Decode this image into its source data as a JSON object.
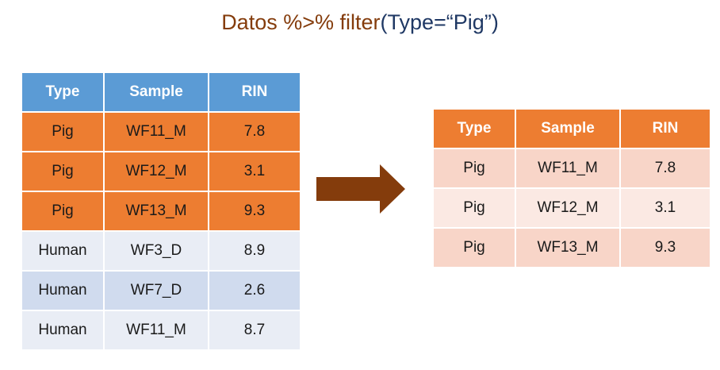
{
  "title": {
    "prefix": "Datos %>% filter",
    "args": "(Type=“Pig”)"
  },
  "input_table": {
    "headers": [
      "Type",
      "Sample",
      "RIN"
    ],
    "rows": [
      {
        "type": "Pig",
        "sample": "WF11_M",
        "rin": "7.8",
        "highlighted": true
      },
      {
        "type": "Pig",
        "sample": "WF12_M",
        "rin": "3.1",
        "highlighted": true
      },
      {
        "type": "Pig",
        "sample": "WF13_M",
        "rin": "9.3",
        "highlighted": true
      },
      {
        "type": "Human",
        "sample": "WF3_D",
        "rin": "8.9",
        "highlighted": false
      },
      {
        "type": "Human",
        "sample": "WF7_D",
        "rin": "2.6",
        "highlighted": false
      },
      {
        "type": "Human",
        "sample": "WF11_M",
        "rin": "8.7",
        "highlighted": false
      }
    ]
  },
  "output_table": {
    "headers": [
      "Type",
      "Sample",
      "RIN"
    ],
    "rows": [
      {
        "type": "Pig",
        "sample": "WF11_M",
        "rin": "7.8"
      },
      {
        "type": "Pig",
        "sample": "WF12_M",
        "rin": "3.1"
      },
      {
        "type": "Pig",
        "sample": "WF13_M",
        "rin": "9.3"
      }
    ]
  },
  "colors": {
    "title_prefix": "#843c0c",
    "title_args": "#1f3864",
    "input_header": "#5b9bd5",
    "highlight_row": "#ed7d31",
    "output_header": "#ed7d31",
    "arrow": "#843c0c"
  },
  "icons": {
    "arrow": "right-arrow-icon"
  }
}
